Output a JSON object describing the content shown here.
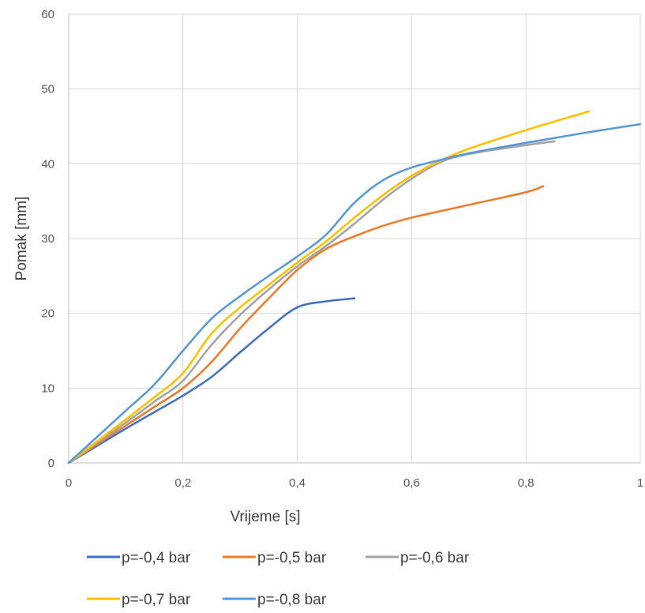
{
  "chart_data": {
    "type": "line",
    "title": "",
    "xlabel": "Vrijeme [s]",
    "ylabel": "Pomak [mm]",
    "xlim": [
      0,
      1
    ],
    "ylim": [
      0,
      60
    ],
    "x_ticks": [
      "0",
      "0,2",
      "0,4",
      "0,6",
      "0,8",
      "1"
    ],
    "y_ticks": [
      "0",
      "10",
      "20",
      "30",
      "40",
      "50",
      "60"
    ],
    "x_tick_values": [
      0,
      0.2,
      0.4,
      0.6,
      0.8,
      1
    ],
    "y_tick_values": [
      0,
      10,
      20,
      30,
      40,
      50,
      60
    ],
    "grid": true,
    "legend_position": "bottom",
    "series": [
      {
        "name": "p=-0,4 bar",
        "color": "#4472C4",
        "x": [
          0,
          0.05,
          0.1,
          0.15,
          0.2,
          0.25,
          0.3,
          0.35,
          0.4,
          0.45,
          0.5
        ],
        "y": [
          0,
          2.3,
          4.6,
          6.8,
          9.0,
          11.5,
          14.8,
          18.0,
          20.8,
          21.6,
          22.0
        ]
      },
      {
        "name": "p=-0,5 bar",
        "color": "#ED7D31",
        "x": [
          0,
          0.05,
          0.1,
          0.15,
          0.2,
          0.25,
          0.3,
          0.35,
          0.4,
          0.45,
          0.5,
          0.55,
          0.6,
          0.7,
          0.8,
          0.83
        ],
        "y": [
          0,
          2.5,
          5.0,
          7.5,
          10.0,
          13.5,
          18.0,
          22.0,
          25.8,
          28.6,
          30.3,
          31.7,
          32.8,
          34.5,
          36.2,
          37.0
        ]
      },
      {
        "name": "p=-0,6 bar",
        "color": "#A5A5A5",
        "x": [
          0,
          0.05,
          0.1,
          0.15,
          0.2,
          0.25,
          0.3,
          0.35,
          0.4,
          0.45,
          0.5,
          0.55,
          0.6,
          0.65,
          0.7,
          0.8,
          0.85
        ],
        "y": [
          0,
          2.7,
          5.4,
          8.2,
          11.0,
          15.8,
          19.8,
          23.2,
          26.3,
          29.0,
          32.0,
          35.2,
          38.0,
          40.2,
          41.3,
          42.5,
          43.0
        ]
      },
      {
        "name": "p=-0,7 bar",
        "color": "#FFC000",
        "x": [
          0,
          0.05,
          0.1,
          0.15,
          0.2,
          0.25,
          0.3,
          0.35,
          0.4,
          0.45,
          0.5,
          0.55,
          0.6,
          0.65,
          0.7,
          0.8,
          0.91
        ],
        "y": [
          0,
          2.9,
          5.8,
          8.8,
          12.0,
          17.3,
          20.8,
          23.8,
          26.8,
          29.6,
          32.8,
          35.8,
          38.4,
          40.4,
          42.0,
          44.5,
          47.0
        ]
      },
      {
        "name": "p=-0,8 bar",
        "color": "#5B9BD5",
        "x": [
          0,
          0.05,
          0.1,
          0.15,
          0.2,
          0.25,
          0.3,
          0.35,
          0.4,
          0.45,
          0.5,
          0.55,
          0.6,
          0.65,
          0.7,
          0.8,
          0.9,
          1.0
        ],
        "y": [
          0,
          3.5,
          7.0,
          10.5,
          15.0,
          19.3,
          22.3,
          25.0,
          27.6,
          30.5,
          34.8,
          37.8,
          39.5,
          40.5,
          41.4,
          42.8,
          44.1,
          45.3
        ]
      }
    ]
  }
}
